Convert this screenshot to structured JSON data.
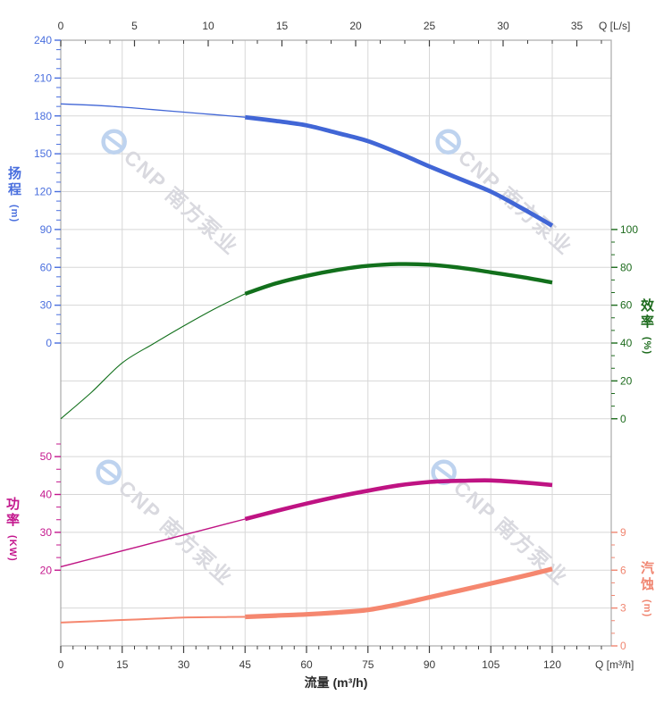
{
  "watermark": {
    "text": "CNP 南方泵业",
    "logo_icon": "cnp-circle-e-logo",
    "text_color": "#d9d9df",
    "logo_color": "#bed3ef"
  },
  "chart_data": {
    "type": "line",
    "title": "",
    "grid": true,
    "legend": "none",
    "x_axis_bottom": {
      "title": "流量 (m³/h)",
      "unit_label": "Q [m³/h]",
      "ticks": [
        0,
        15,
        30,
        45,
        60,
        75,
        90,
        105,
        120
      ],
      "minor_step": 3,
      "x_range": [
        0,
        134.4
      ]
    },
    "x_axis_top": {
      "unit_label": "Q [L/s]",
      "ticks": [
        0,
        5,
        10,
        15,
        20,
        25,
        30,
        35
      ],
      "minor_step": 1.667
    },
    "y_axes": {
      "head": {
        "title": "扬程",
        "unit": "(m)",
        "side": "left",
        "color": "#4a6fde",
        "ticks": [
          240,
          210,
          180,
          150,
          120,
          90,
          60,
          30,
          0
        ],
        "range": [
          0,
          240
        ]
      },
      "efficiency": {
        "title": "效率",
        "unit": "(%)",
        "side": "right",
        "color": "#1d6b1d",
        "ticks": [
          100,
          80,
          60,
          40,
          20,
          0
        ],
        "range": [
          0,
          100
        ]
      },
      "power": {
        "title": "功率",
        "unit": "(KW)",
        "side": "left",
        "color": "#c4188e",
        "ticks": [
          50,
          40,
          30,
          20
        ],
        "range": [
          20,
          50
        ]
      },
      "npsh": {
        "title": "汽蚀",
        "unit": "(m)",
        "side": "right",
        "color": "#f08671",
        "ticks": [
          9,
          6,
          3,
          0
        ],
        "range": [
          0,
          9
        ]
      }
    },
    "series": [
      {
        "name": "head-curve",
        "axis": "head",
        "color": "#4166d6",
        "bold_from_q": 45,
        "q": [
          0,
          7.5,
          15,
          22.5,
          30,
          37.5,
          45,
          52.5,
          60,
          67.5,
          75,
          82.5,
          90,
          97.5,
          105,
          112.5,
          120
        ],
        "v": [
          189.5,
          188.5,
          187,
          185,
          183,
          181,
          179,
          176,
          172.5,
          166.5,
          160,
          150.5,
          140,
          130,
          120,
          107,
          93
        ]
      },
      {
        "name": "efficiency-curve",
        "axis": "efficiency",
        "color": "#12701c",
        "bold_from_q": 45,
        "q": [
          0,
          7.5,
          15,
          22.5,
          30,
          37.5,
          45,
          52.5,
          60,
          67.5,
          75,
          82.5,
          90,
          97.5,
          105,
          112.5,
          120
        ],
        "v": [
          0,
          14,
          29.5,
          39.5,
          49,
          58,
          66,
          71.5,
          75.5,
          78.6,
          80.8,
          81.7,
          81.4,
          79.8,
          77.4,
          74.9,
          72
        ]
      },
      {
        "name": "power-curve",
        "axis": "power",
        "color": "#bf1383",
        "bold_from_q": 45,
        "q": [
          0,
          7.5,
          15,
          22.5,
          30,
          37.5,
          45,
          52.5,
          60,
          67.5,
          75,
          82.5,
          90,
          97.5,
          105,
          112.5,
          120
        ],
        "v": [
          20.9,
          23,
          25.1,
          27.2,
          29.3,
          31.4,
          33.5,
          35.6,
          37.6,
          39.4,
          41,
          42.4,
          43.3,
          43.6,
          43.7,
          43.2,
          42.5
        ]
      },
      {
        "name": "npsh-curve",
        "axis": "npsh",
        "color": "#f5876f",
        "bold_from_q": 45,
        "q": [
          0,
          7.5,
          15,
          22.5,
          30,
          37.5,
          45,
          52.5,
          60,
          67.5,
          75,
          82.5,
          90,
          97.5,
          105,
          112.5,
          120
        ],
        "v": [
          1.85,
          1.95,
          2.05,
          2.15,
          2.25,
          2.28,
          2.3,
          2.4,
          2.5,
          2.65,
          2.85,
          3.3,
          3.85,
          4.4,
          4.95,
          5.5,
          6.1
        ]
      }
    ],
    "style": {
      "grid_color": "#d7d7d7",
      "border_color": "#ababab",
      "xaxis_label_color": "#3a3a3a"
    }
  }
}
